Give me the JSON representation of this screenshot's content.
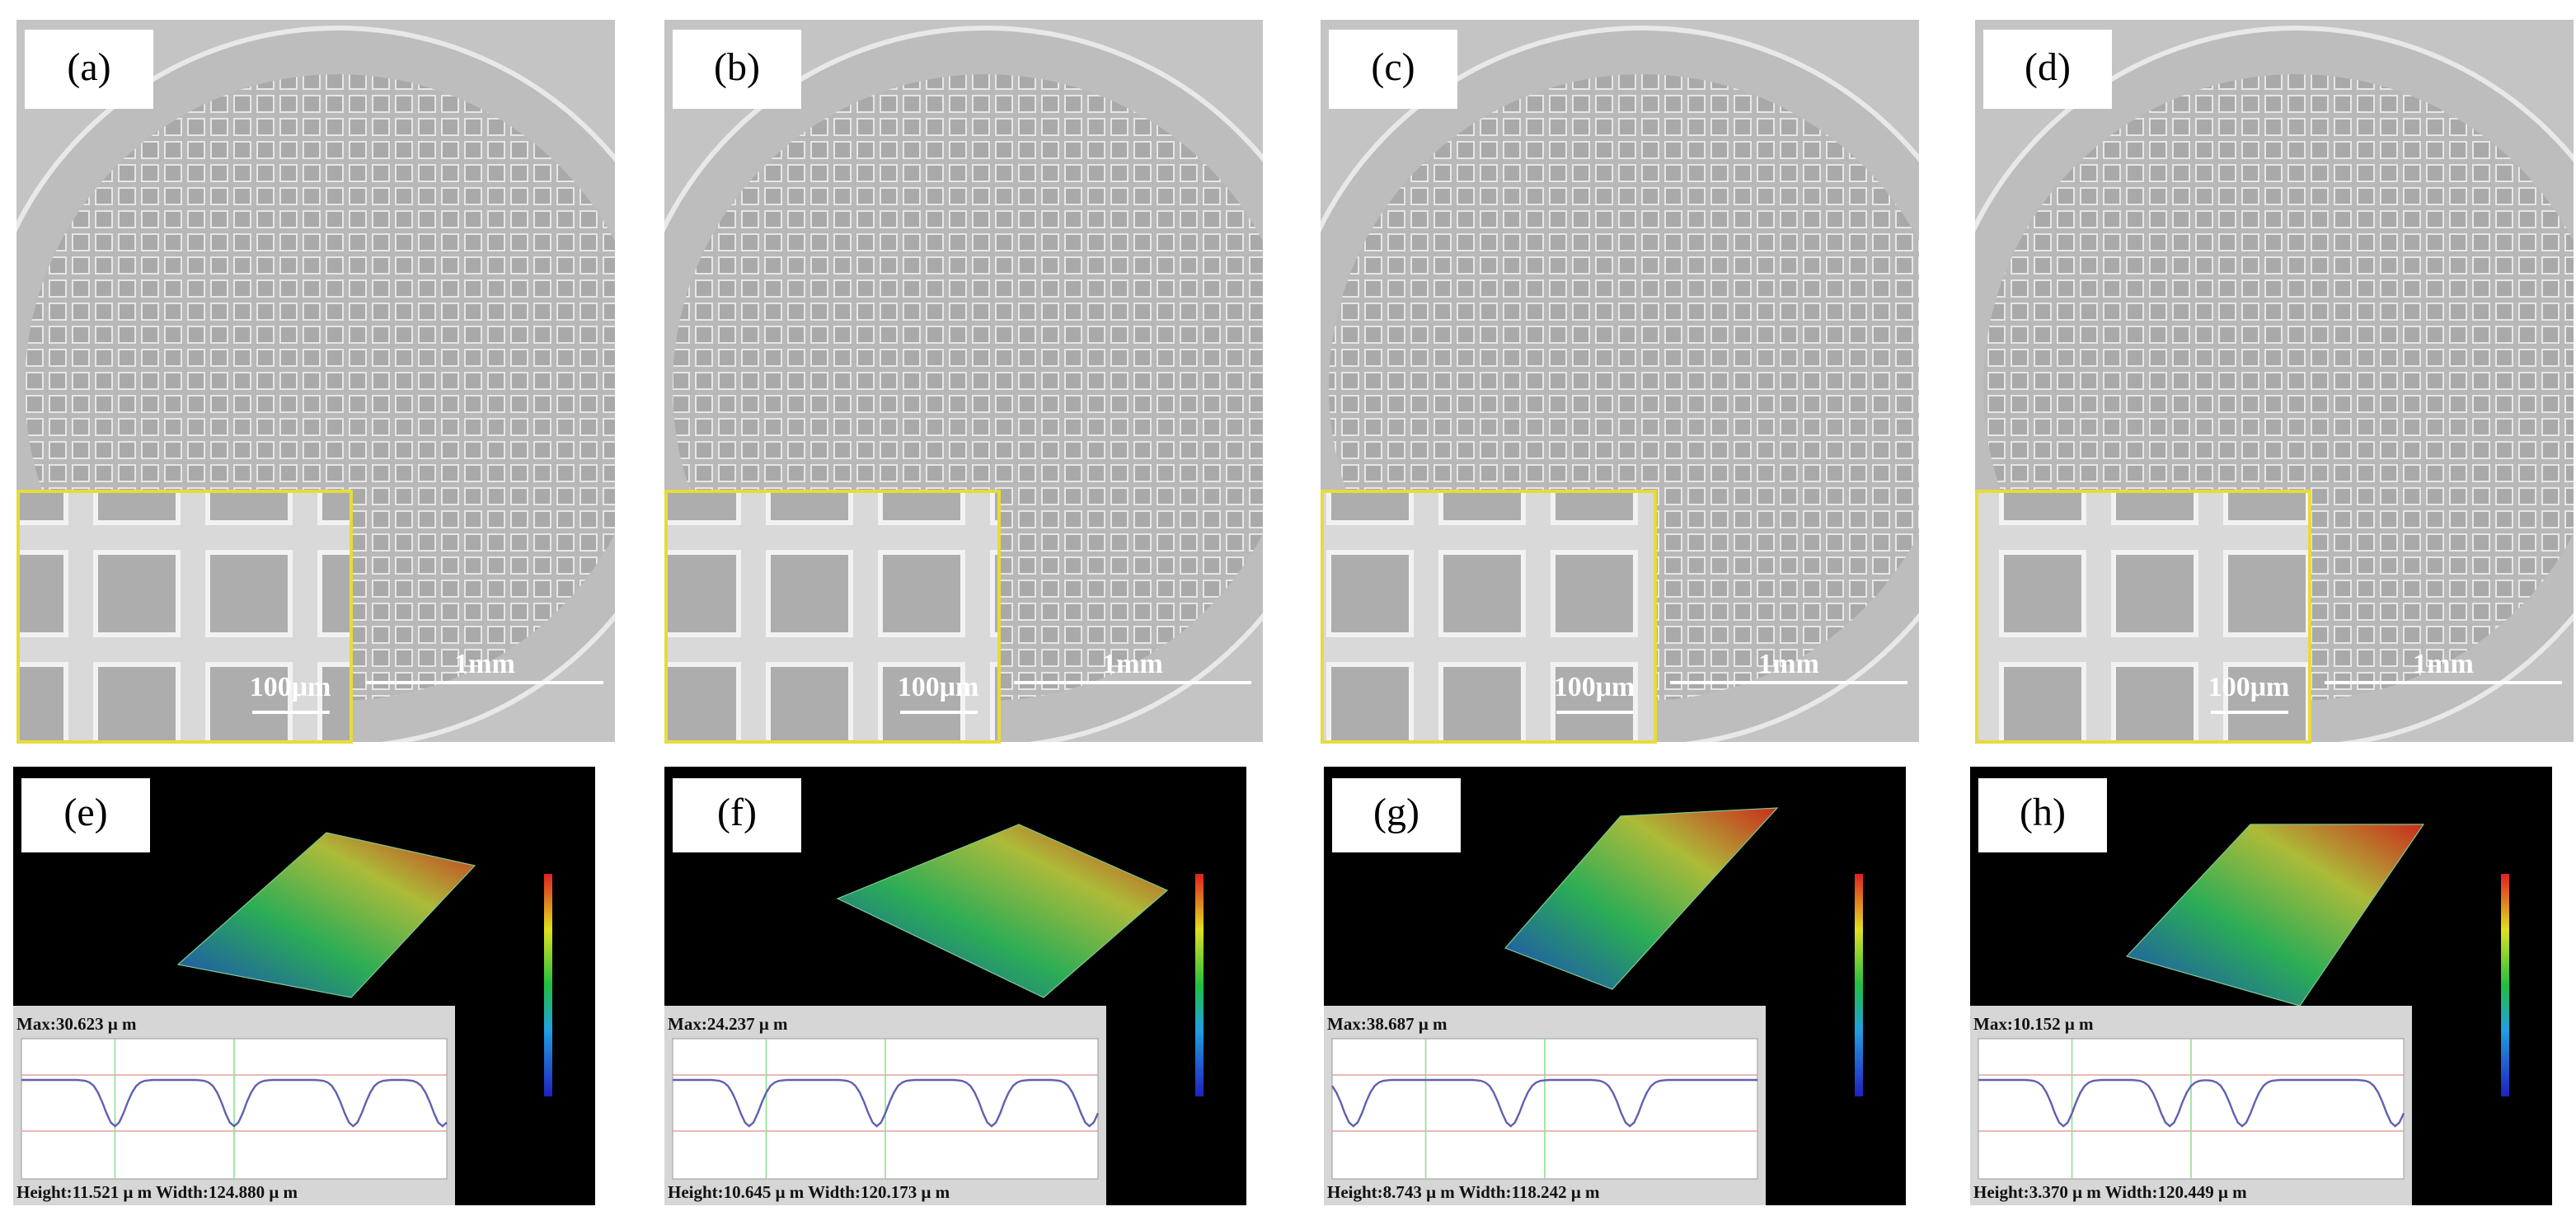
{
  "panels_top": [
    {
      "label": "(a)",
      "inset_scale": "100μm",
      "scale": "1mm"
    },
    {
      "label": "(b)",
      "inset_scale": "100μm",
      "scale": "1mm"
    },
    {
      "label": "(c)",
      "inset_scale": "100μm",
      "scale": "1mm"
    },
    {
      "label": "(d)",
      "inset_scale": "100μm",
      "scale": "1mm"
    }
  ],
  "panels_bottom": [
    {
      "label": "(e)",
      "max": "Max:30.623 μ m",
      "stats": "Height:11.521 μ m  Width:124.880 μ m"
    },
    {
      "label": "(f)",
      "max": "Max:24.237 μ m",
      "stats": "Height:10.645 μ m  Width:120.173 μ m"
    },
    {
      "label": "(g)",
      "max": "Max:38.687 μ m",
      "stats": "Height:8.743 μ m  Width:118.242 μ m"
    },
    {
      "label": "(h)",
      "max": "Max:10.152 μ m",
      "stats": "Height:3.370 μ m  Width:120.449 μ m"
    }
  ]
}
